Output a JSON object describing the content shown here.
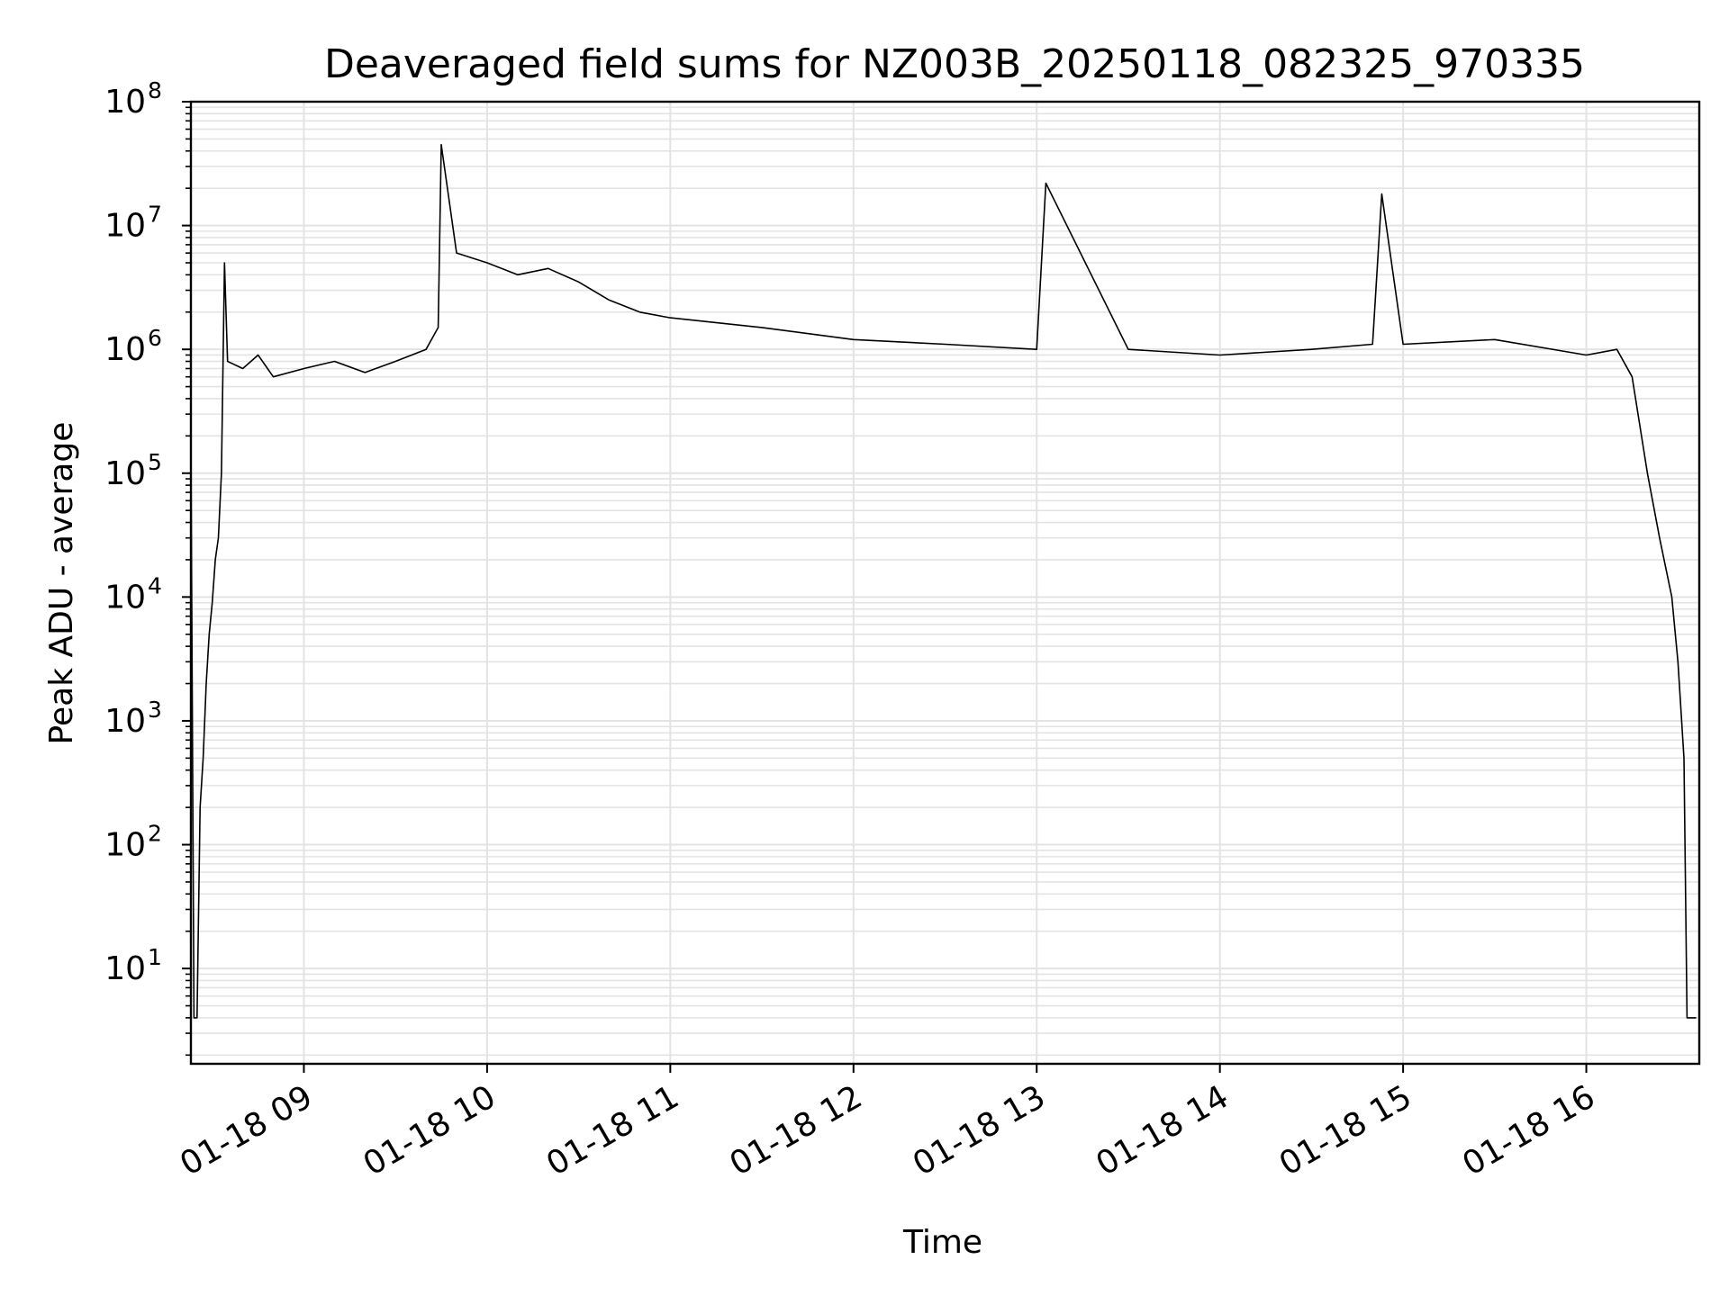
{
  "chart_data": {
    "type": "line",
    "title": "Deaveraged field sums for NZ003B_20250118_082325_970335",
    "xlabel": "Time",
    "ylabel": "Peak ADU - average",
    "yscale": "log",
    "ylim": [
      1.7,
      100000000
    ],
    "xlim": [
      "01-18 08:23",
      "01-18 16:37"
    ],
    "grid": true,
    "line_color": "#000000",
    "grid_color": "#e3e3e3",
    "x_ticks": [
      {
        "t": "01-18 09:00",
        "label": "01-18 09"
      },
      {
        "t": "01-18 10:00",
        "label": "01-18 10"
      },
      {
        "t": "01-18 11:00",
        "label": "01-18 11"
      },
      {
        "t": "01-18 12:00",
        "label": "01-18 12"
      },
      {
        "t": "01-18 13:00",
        "label": "01-18 13"
      },
      {
        "t": "01-18 14:00",
        "label": "01-18 14"
      },
      {
        "t": "01-18 15:00",
        "label": "01-18 15"
      },
      {
        "t": "01-18 16:00",
        "label": "01-18 16"
      }
    ],
    "y_ticks": [
      {
        "value": 10,
        "base": "10",
        "exp": "1"
      },
      {
        "value": 100,
        "base": "10",
        "exp": "2"
      },
      {
        "value": 1000,
        "base": "10",
        "exp": "3"
      },
      {
        "value": 10000,
        "base": "10",
        "exp": "4"
      },
      {
        "value": 100000,
        "base": "10",
        "exp": "5"
      },
      {
        "value": 1000000,
        "base": "10",
        "exp": "6"
      },
      {
        "value": 10000000,
        "base": "10",
        "exp": "7"
      },
      {
        "value": 100000000,
        "base": "10",
        "exp": "8"
      }
    ],
    "series": [
      {
        "points": [
          [
            "01-18 08:23",
            170000
          ],
          [
            "01-18 08:24",
            4
          ],
          [
            "01-18 08:25",
            4
          ],
          [
            "01-18 08:26",
            200
          ],
          [
            "01-18 08:27",
            500
          ],
          [
            "01-18 08:28",
            2000
          ],
          [
            "01-18 08:29",
            5000
          ],
          [
            "01-18 08:30",
            9000
          ],
          [
            "01-18 08:31",
            20000
          ],
          [
            "01-18 08:32",
            30000
          ],
          [
            "01-18 08:33",
            100000
          ],
          [
            "01-18 08:34",
            5000000
          ],
          [
            "01-18 08:35",
            800000
          ],
          [
            "01-18 08:40",
            700000
          ],
          [
            "01-18 08:45",
            900000
          ],
          [
            "01-18 08:50",
            600000
          ],
          [
            "01-18 09:00",
            700000
          ],
          [
            "01-18 09:10",
            800000
          ],
          [
            "01-18 09:20",
            650000
          ],
          [
            "01-18 09:30",
            800000
          ],
          [
            "01-18 09:40",
            1000000
          ],
          [
            "01-18 09:44",
            1500000
          ],
          [
            "01-18 09:45",
            45000000
          ],
          [
            "01-18 09:50",
            6000000
          ],
          [
            "01-18 10:00",
            5000000
          ],
          [
            "01-18 10:10",
            4000000
          ],
          [
            "01-18 10:20",
            4500000
          ],
          [
            "01-18 10:30",
            3500000
          ],
          [
            "01-18 10:40",
            2500000
          ],
          [
            "01-18 10:50",
            2000000
          ],
          [
            "01-18 11:00",
            1800000
          ],
          [
            "01-18 11:30",
            1500000
          ],
          [
            "01-18 12:00",
            1200000
          ],
          [
            "01-18 12:30",
            1100000
          ],
          [
            "01-18 13:00",
            1000000
          ],
          [
            "01-18 13:03",
            22000000
          ],
          [
            "01-18 13:30",
            1000000
          ],
          [
            "01-18 14:00",
            900000
          ],
          [
            "01-18 14:30",
            1000000
          ],
          [
            "01-18 14:50",
            1100000
          ],
          [
            "01-18 14:53",
            18000000
          ],
          [
            "01-18 15:00",
            1100000
          ],
          [
            "01-18 15:30",
            1200000
          ],
          [
            "01-18 16:00",
            900000
          ],
          [
            "01-18 16:10",
            1000000
          ],
          [
            "01-18 16:15",
            600000
          ],
          [
            "01-18 16:20",
            100000
          ],
          [
            "01-18 16:24",
            30000
          ],
          [
            "01-18 16:28",
            10000
          ],
          [
            "01-18 16:30",
            3000
          ],
          [
            "01-18 16:32",
            500
          ],
          [
            "01-18 16:33",
            4
          ],
          [
            "01-18 16:36",
            4
          ]
        ]
      }
    ]
  }
}
